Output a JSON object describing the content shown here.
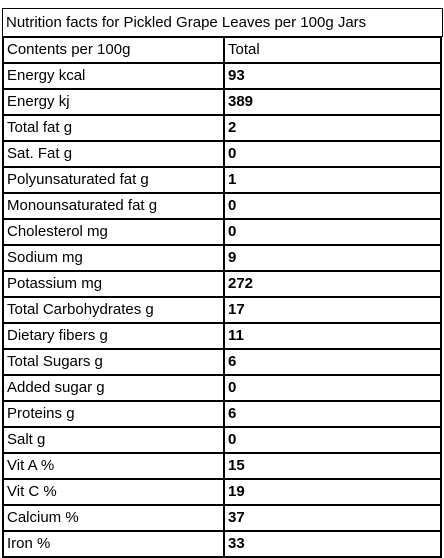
{
  "title": "Nutrition facts for Pickled Grape Leaves per 100g Jars",
  "table": {
    "header": [
      "Contents per 100g",
      "Total"
    ],
    "rows": [
      [
        "Energy kcal",
        93
      ],
      [
        "Energy kj",
        389
      ],
      [
        "Total fat g",
        2
      ],
      [
        "Sat. Fat g",
        0
      ],
      [
        "Polyunsaturated fat g",
        1
      ],
      [
        "Monounsaturated fat g",
        0
      ],
      [
        "Cholesterol mg",
        0
      ],
      [
        "Sodium mg",
        9
      ],
      [
        "Potassium mg",
        272
      ],
      [
        "Total Carbohydrates g",
        17
      ],
      [
        "Dietary fibers g",
        11
      ],
      [
        "Total Sugars g",
        6
      ],
      [
        "Added sugar g",
        0
      ],
      [
        "Proteins g",
        6
      ],
      [
        "Salt g",
        0
      ],
      [
        "Vit A %",
        15
      ],
      [
        "Vit C %",
        19
      ],
      [
        "Calcium %",
        37
      ],
      [
        "Iron %",
        33
      ]
    ]
  }
}
